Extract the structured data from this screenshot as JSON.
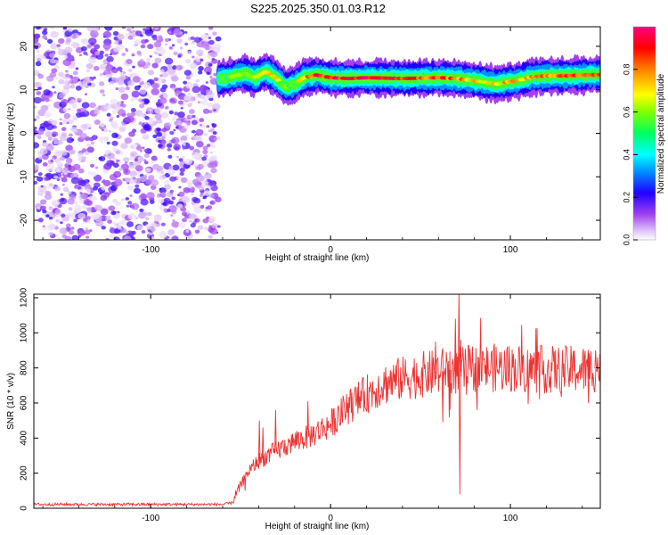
{
  "title": "S225.2025.350.01.03.R12",
  "chart_data": [
    {
      "type": "heatmap",
      "name": "spectrogram",
      "xlabel": "Height of straight line (km)",
      "ylabel": "Frequency (Hz)",
      "xlim": [
        -165,
        150
      ],
      "ylim": [
        -24.5,
        24.5
      ],
      "xticks": [
        -100,
        0,
        100
      ],
      "yticks": [
        -20,
        -10,
        0,
        10,
        20
      ],
      "noise_region_x": [
        -165,
        -62
      ],
      "signal_region_x": [
        -62,
        150
      ],
      "colorbar": {
        "label": "Normalized spectral amplitude",
        "range": [
          0,
          1
        ],
        "ticks": [
          0.0,
          0.2,
          0.4,
          0.6,
          0.8
        ],
        "colormap": [
          "#ffffff",
          "#d8b0f8",
          "#a040f0",
          "#2000ff",
          "#0080ff",
          "#00ffff",
          "#00ff60",
          "#a0ff00",
          "#ffff00",
          "#ff8000",
          "#ff0000",
          "#ff0080"
        ]
      },
      "ridge": {
        "x": [
          -62,
          -55,
          -48,
          -42,
          -36,
          -30,
          -25,
          -20,
          -15,
          -8,
          0,
          10,
          20,
          30,
          40,
          50,
          60,
          70,
          78,
          85,
          92,
          98,
          105,
          112,
          120,
          130,
          140,
          150
        ],
        "y": [
          12.5,
          13.0,
          13.8,
          12.8,
          14.2,
          12.6,
          10.6,
          11.2,
          12.8,
          13.4,
          12.8,
          12.6,
          12.8,
          12.7,
          12.6,
          12.7,
          12.8,
          12.6,
          12.2,
          11.8,
          11.3,
          11.8,
          12.2,
          13.0,
          13.2,
          13.2,
          13.4,
          13.5
        ],
        "amplitude": [
          0.45,
          0.55,
          0.6,
          0.65,
          0.75,
          0.7,
          0.55,
          0.6,
          0.75,
          0.85,
          0.9,
          0.9,
          0.95,
          0.9,
          0.88,
          0.85,
          0.82,
          0.8,
          0.7,
          0.65,
          0.68,
          0.72,
          0.7,
          0.75,
          0.8,
          0.82,
          0.85,
          0.88
        ]
      }
    },
    {
      "type": "line",
      "name": "snr",
      "xlabel": "Height of straight line (km)",
      "ylabel": "SNR (10 * v/v)",
      "xlim": [
        -165,
        150
      ],
      "ylim": [
        0,
        1220
      ],
      "xticks": [
        -100,
        0,
        100
      ],
      "yticks": [
        0,
        200,
        400,
        600,
        800,
        1000,
        1200
      ],
      "color": "#ee3333",
      "trend": {
        "x": [
          -165,
          -60,
          -55,
          -50,
          -45,
          -40,
          -30,
          -20,
          -10,
          0,
          10,
          20,
          30,
          40,
          50,
          60,
          65,
          70,
          75,
          80,
          90,
          100,
          110,
          120,
          130,
          140,
          150
        ],
        "y": [
          22,
          22,
          30,
          130,
          220,
          270,
          330,
          380,
          420,
          480,
          580,
          650,
          710,
          740,
          760,
          775,
          790,
          780,
          790,
          800,
          800,
          800,
          790,
          790,
          790,
          790,
          800
        ]
      },
      "spikes": [
        {
          "x": -40,
          "y": 500
        },
        {
          "x": -38,
          "y": 460
        },
        {
          "x": -31,
          "y": 560
        },
        {
          "x": -13,
          "y": 610
        },
        {
          "x": 58,
          "y": 950
        },
        {
          "x": 62,
          "y": 490
        },
        {
          "x": 66,
          "y": 560
        },
        {
          "x": 69,
          "y": 1080
        },
        {
          "x": 71,
          "y": 1235
        },
        {
          "x": 71.5,
          "y": 80
        },
        {
          "x": 72,
          "y": 960
        },
        {
          "x": 143,
          "y": 890
        },
        {
          "x": 147,
          "y": 900
        },
        {
          "x": 143,
          "y": 600
        }
      ]
    }
  ]
}
